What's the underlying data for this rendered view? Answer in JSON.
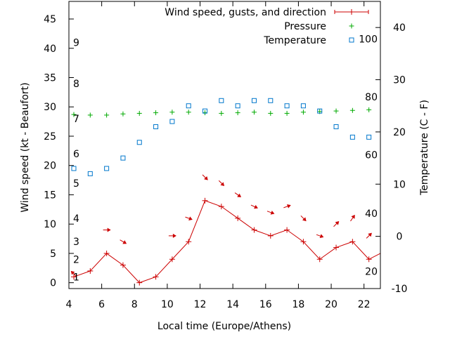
{
  "chart_data": {
    "type": "line",
    "xlabel": "Local time (Europe/Athens)",
    "ylabel": "Wind speed (kt - Beaufort)",
    "y2label": "Temperature (C - F)",
    "xlim": [
      4,
      23
    ],
    "ylim": [
      -1,
      48
    ],
    "y2lim": [
      -10,
      45
    ],
    "x_ticks": [
      4,
      6,
      8,
      10,
      12,
      14,
      16,
      18,
      20,
      22
    ],
    "y_ticks": [
      0,
      5,
      10,
      15,
      20,
      25,
      30,
      35,
      40,
      45
    ],
    "y2_ticks": [
      -10,
      0,
      10,
      20,
      30,
      40
    ],
    "beaufort_labels": [
      {
        "label": "1",
        "kt": 1
      },
      {
        "label": "2",
        "kt": 4
      },
      {
        "label": "3",
        "kt": 7
      },
      {
        "label": "4",
        "kt": 11
      },
      {
        "label": "5",
        "kt": 17
      },
      {
        "label": "6",
        "kt": 22
      },
      {
        "label": "7",
        "kt": 28
      },
      {
        "label": "8",
        "kt": 34
      },
      {
        "label": "9",
        "kt": 41
      }
    ],
    "fahrenheit_labels": [
      {
        "label": "20",
        "celsius": -6.7
      },
      {
        "label": "40",
        "celsius": 4.4
      },
      {
        "label": "60",
        "celsius": 15.6
      },
      {
        "label": "80",
        "celsius": 26.7
      },
      {
        "label": "100",
        "celsius": 37.8
      }
    ],
    "legend": {
      "position": "top-right",
      "entries": [
        {
          "name": "Wind speed, gusts, and direction",
          "marker": "line-plus"
        },
        {
          "name": "Pressure",
          "marker": "plus"
        },
        {
          "name": "Temperature",
          "marker": "square"
        }
      ]
    },
    "series": [
      {
        "name": "Wind speed, gusts, and direction",
        "axis": "y",
        "color": "#cc0000",
        "x": [
          4.3,
          5.3,
          6.3,
          7.3,
          8.3,
          9.3,
          10.3,
          11.3,
          12.3,
          13.3,
          14.3,
          15.3,
          16.3,
          17.3,
          18.3,
          19.3,
          20.3,
          21.3,
          22.3,
          23
        ],
        "values": [
          1,
          2,
          5,
          3,
          0,
          1,
          4,
          7,
          14,
          13,
          11,
          9,
          8,
          9,
          7,
          4,
          6,
          7,
          4,
          5
        ]
      },
      {
        "name": "Pressure",
        "axis": "y",
        "color": "#00aa00",
        "x": [
          4.3,
          5.3,
          6.3,
          7.3,
          8.3,
          9.3,
          10.3,
          11.3,
          12.3,
          13.3,
          14.3,
          15.3,
          16.3,
          17.3,
          18.3,
          19.3,
          20.3,
          21.3,
          22.3
        ],
        "values": [
          28.7,
          28.6,
          28.6,
          28.8,
          28.9,
          29.0,
          29.1,
          29.1,
          29.0,
          28.9,
          29.0,
          29.1,
          28.9,
          28.9,
          29.1,
          29.2,
          29.3,
          29.4,
          29.5
        ]
      },
      {
        "name": "Temperature",
        "axis": "y2",
        "color": "#0077cc",
        "x": [
          4.3,
          5.3,
          6.3,
          7.3,
          8.3,
          9.3,
          10.3,
          11.3,
          12.3,
          13.3,
          14.3,
          15.3,
          16.3,
          17.3,
          18.3,
          19.3,
          20.3,
          21.3,
          22.3
        ],
        "values": [
          13,
          12,
          13,
          15,
          18,
          21,
          22,
          25,
          24,
          26,
          25,
          26,
          26,
          25,
          25,
          24,
          21,
          19,
          19
        ]
      }
    ],
    "direction_arrows": {
      "color": "#cc0000",
      "points": [
        {
          "x": 4.3,
          "kt": 1.5,
          "to_deg": 225
        },
        {
          "x": 6.3,
          "kt": 9,
          "to_deg": 0
        },
        {
          "x": 7.3,
          "kt": 7,
          "to_deg": 30
        },
        {
          "x": 10.3,
          "kt": 8,
          "to_deg": 0
        },
        {
          "x": 11.3,
          "kt": 11,
          "to_deg": 20
        },
        {
          "x": 12.3,
          "kt": 18,
          "to_deg": 45
        },
        {
          "x": 13.3,
          "kt": 17,
          "to_deg": 45
        },
        {
          "x": 14.3,
          "kt": 15,
          "to_deg": 35
        },
        {
          "x": 15.3,
          "kt": 13,
          "to_deg": 25
        },
        {
          "x": 16.3,
          "kt": 12,
          "to_deg": 20
        },
        {
          "x": 17.3,
          "kt": 13,
          "to_deg": -20
        },
        {
          "x": 18.3,
          "kt": 11,
          "to_deg": 45
        },
        {
          "x": 19.3,
          "kt": 8,
          "to_deg": 20
        },
        {
          "x": 20.3,
          "kt": 10,
          "to_deg": -45
        },
        {
          "x": 21.3,
          "kt": 11,
          "to_deg": -55
        },
        {
          "x": 22.3,
          "kt": 8,
          "to_deg": -45
        }
      ]
    }
  }
}
